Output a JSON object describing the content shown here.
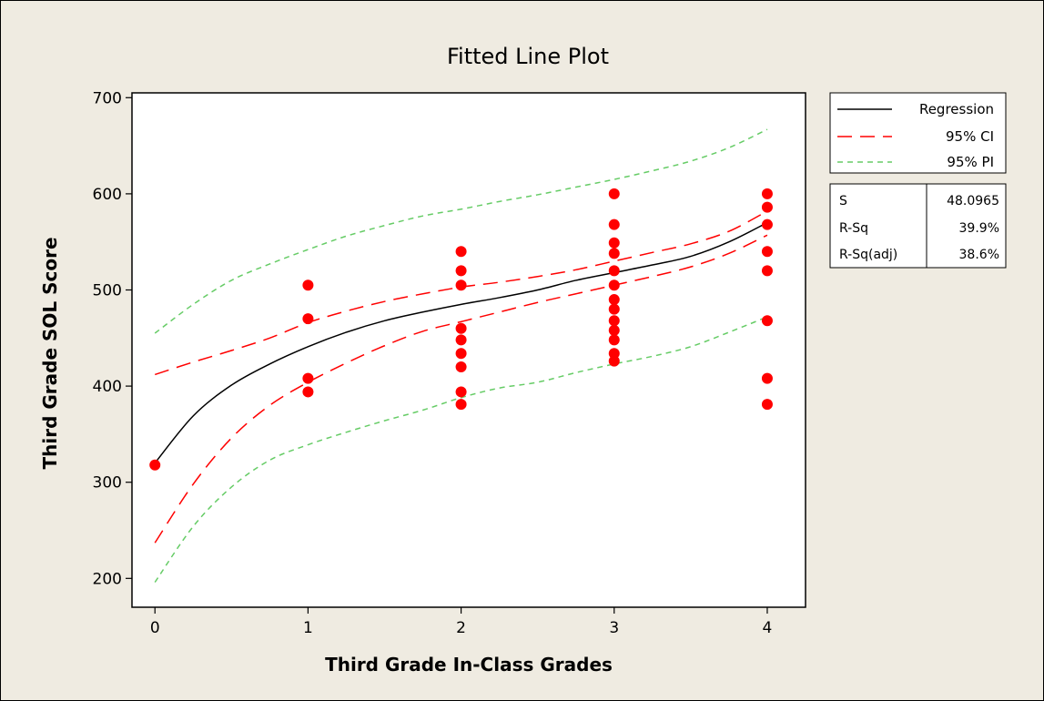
{
  "colors": {
    "frame_background": "#efebe1",
    "plot_background": "#ffffff",
    "regression": "#000000",
    "ci": "#ff0000",
    "pi": "#66cc66",
    "points": "#ff0000"
  },
  "chart_data": {
    "type": "scatter",
    "title": "Fitted Line Plot",
    "xlabel": "Third Grade In-Class Grades",
    "ylabel": "Third Grade SOL Score",
    "xlim": [
      -0.15,
      4.25
    ],
    "ylim": [
      170,
      705
    ],
    "xticks": [
      0,
      1,
      2,
      3,
      4
    ],
    "yticks": [
      200,
      300,
      400,
      500,
      600,
      700
    ],
    "grid": false,
    "legend_position": "right",
    "legend": [
      {
        "label": "Regression",
        "style": "solid",
        "color": "#000000"
      },
      {
        "label": "95% CI",
        "style": "long-dash",
        "color": "#ff0000"
      },
      {
        "label": "95% PI",
        "style": "short-dash",
        "color": "#66cc66"
      }
    ],
    "stats": [
      {
        "label": "S",
        "value": "48.0965"
      },
      {
        "label": "R-Sq",
        "value": "39.9%"
      },
      {
        "label": "R-Sq(adj)",
        "value": "38.6%"
      }
    ],
    "points": [
      [
        0,
        318
      ],
      [
        1,
        505
      ],
      [
        1,
        470
      ],
      [
        1,
        408
      ],
      [
        1,
        394
      ],
      [
        2,
        540
      ],
      [
        2,
        520
      ],
      [
        2,
        505
      ],
      [
        2,
        460
      ],
      [
        2,
        448
      ],
      [
        2,
        434
      ],
      [
        2,
        420
      ],
      [
        2,
        394
      ],
      [
        2,
        381
      ],
      [
        3,
        600
      ],
      [
        3,
        568
      ],
      [
        3,
        549
      ],
      [
        3,
        538
      ],
      [
        3,
        520
      ],
      [
        3,
        505
      ],
      [
        3,
        490
      ],
      [
        3,
        480
      ],
      [
        3,
        468
      ],
      [
        3,
        458
      ],
      [
        3,
        448
      ],
      [
        3,
        434
      ],
      [
        3,
        426
      ],
      [
        4,
        600
      ],
      [
        4,
        586
      ],
      [
        4,
        568
      ],
      [
        4,
        540
      ],
      [
        4,
        520
      ],
      [
        4,
        468
      ],
      [
        4,
        408
      ],
      [
        4,
        381
      ]
    ],
    "series": [
      {
        "name": "Regression",
        "x": [
          0,
          0.25,
          0.5,
          0.75,
          1,
          1.25,
          1.5,
          1.75,
          2,
          2.25,
          2.5,
          2.75,
          3,
          3.25,
          3.5,
          3.75,
          4
        ],
        "y": [
          320,
          369,
          401,
          423,
          441,
          456,
          468,
          477,
          485,
          492,
          500,
          510,
          518,
          526,
          535,
          550,
          570
        ]
      },
      {
        "name": "95% CI upper",
        "x": [
          0,
          0.25,
          0.5,
          0.75,
          1,
          1.25,
          1.5,
          1.75,
          2,
          2.25,
          2.5,
          2.75,
          3,
          3.25,
          3.5,
          3.75,
          4
        ],
        "y": [
          412,
          425,
          437,
          450,
          466,
          478,
          488,
          496,
          503,
          508,
          514,
          521,
          530,
          539,
          548,
          561,
          582
        ]
      },
      {
        "name": "95% CI lower",
        "x": [
          0,
          0.25,
          0.5,
          0.75,
          1,
          1.25,
          1.5,
          1.75,
          2,
          2.25,
          2.5,
          2.75,
          3,
          3.25,
          3.5,
          3.75,
          4
        ],
        "y": [
          237,
          298,
          346,
          380,
          404,
          424,
          442,
          457,
          467,
          477,
          487,
          496,
          505,
          514,
          524,
          538,
          557
        ]
      },
      {
        "name": "95% PI upper",
        "x": [
          0,
          0.25,
          0.5,
          0.75,
          1,
          1.25,
          1.5,
          1.75,
          2,
          2.25,
          2.5,
          2.75,
          3,
          3.25,
          3.5,
          3.75,
          4
        ],
        "y": [
          455,
          485,
          510,
          527,
          542,
          556,
          567,
          577,
          584,
          592,
          599,
          607,
          615,
          624,
          634,
          648,
          667
        ]
      },
      {
        "name": "95% PI lower",
        "x": [
          0,
          0.25,
          0.5,
          0.75,
          1,
          1.25,
          1.5,
          1.75,
          2,
          2.25,
          2.5,
          2.75,
          3,
          3.25,
          3.5,
          3.75,
          4
        ],
        "y": [
          196,
          254,
          295,
          323,
          339,
          352,
          364,
          375,
          388,
          398,
          404,
          414,
          423,
          431,
          441,
          456,
          472
        ]
      }
    ]
  }
}
